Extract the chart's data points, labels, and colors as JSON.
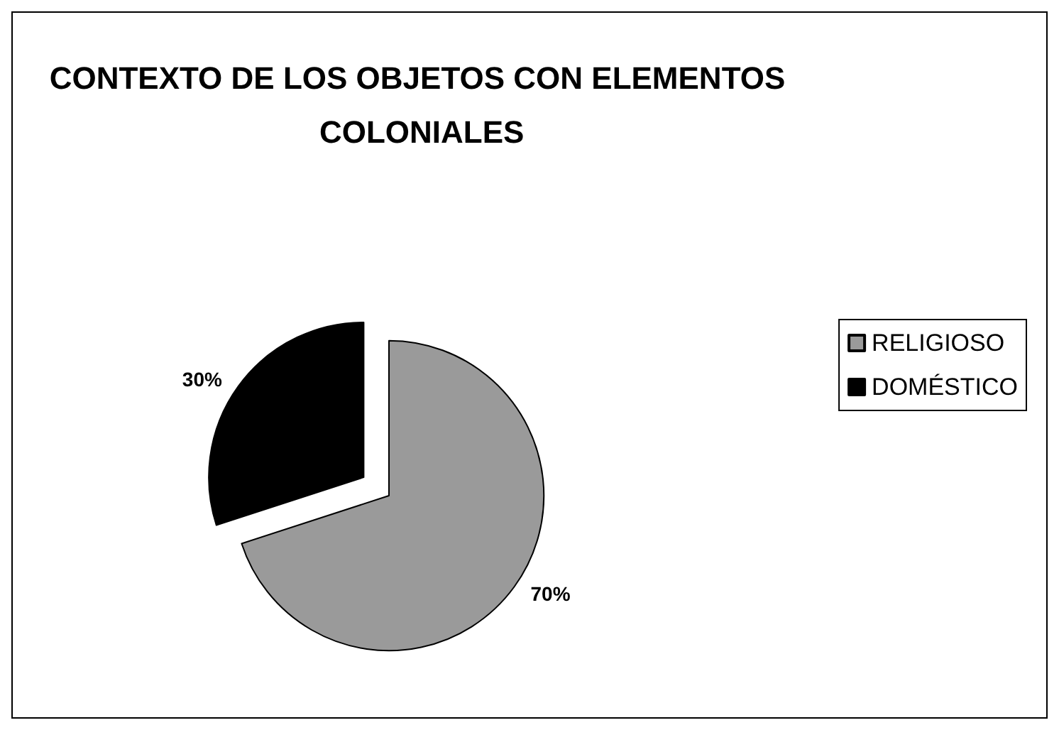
{
  "chart_data": {
    "type": "pie",
    "title": "CONTEXTO DE LOS OBJETOS CON ELEMENTOS COLONIALES",
    "categories": [
      "RELIGIOSO",
      "DOMÉSTICO"
    ],
    "values": [
      70,
      30
    ],
    "value_labels": [
      "70%",
      "30%"
    ],
    "colors": [
      "#9a9a9a",
      "#000000"
    ],
    "legend": "right"
  }
}
